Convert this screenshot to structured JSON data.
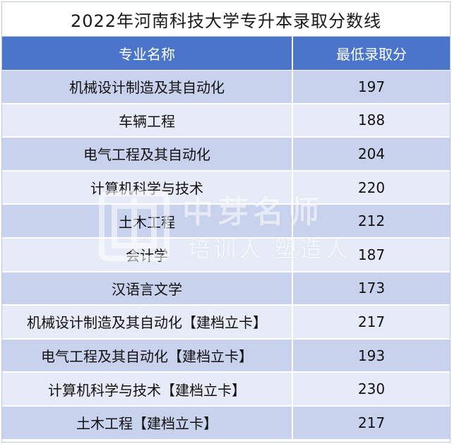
{
  "title": "2022年河南科技大学专升本录取分数线",
  "columns": [
    "专业名称",
    "最低录取分"
  ],
  "rows": [
    {
      "major": "机械设计制造及其自动化",
      "score": "197"
    },
    {
      "major": "车辆工程",
      "score": "188"
    },
    {
      "major": "电气工程及其自动化",
      "score": "204"
    },
    {
      "major": "计算机科学与技术",
      "score": "220"
    },
    {
      "major": "土木工程",
      "score": "212"
    },
    {
      "major": "会计学",
      "score": "187"
    },
    {
      "major": "汉语言文学",
      "score": "173"
    },
    {
      "major": "机械设计制造及其自动化【建档立卡】",
      "score": "217"
    },
    {
      "major": "电气工程及其自动化【建档立卡】",
      "score": "193"
    },
    {
      "major": "计算机科学与技术【建档立卡】",
      "score": "230"
    },
    {
      "major": "土木工程【建档立卡】",
      "score": "217"
    }
  ],
  "watermark": {
    "main": "中芽名师",
    "sub": "培训人 塑造人"
  },
  "colors": {
    "header_bg": "#4a75c9",
    "row_dark": "#c8d2ed",
    "row_light": "#e6ebf7"
  }
}
